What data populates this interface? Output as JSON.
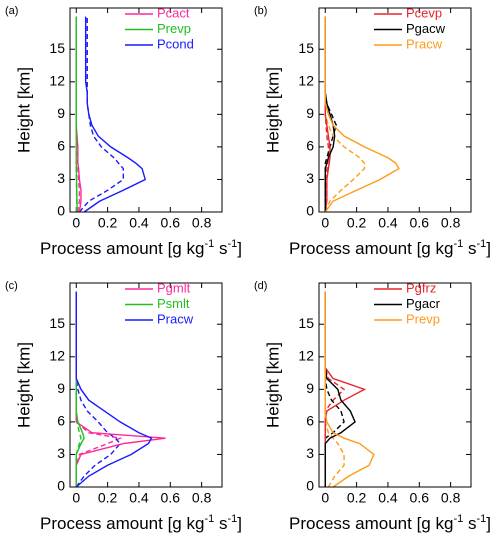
{
  "chart_data": [
    {
      "type": "line",
      "panel_label": "(a)",
      "ylabel": "Height [km]",
      "xlabel": [
        "Process amount [g kg",
        "-1",
        " s",
        "-1",
        "]"
      ],
      "y": [
        0,
        1,
        2,
        3,
        4,
        4.5,
        5,
        6,
        7,
        8,
        9,
        10,
        11,
        12,
        13,
        14,
        15,
        16,
        17,
        18
      ],
      "xlim": [
        -0.04,
        0.93
      ],
      "ylim": [
        0,
        18.8
      ],
      "xticks": [
        0,
        0.2,
        0.4,
        0.6,
        0.8
      ],
      "yticks": [
        0,
        3,
        6,
        9,
        12,
        15
      ],
      "series": [
        {
          "name": "Pcact",
          "color": "#ff2a9a",
          "values": [
            0.02,
            0.03,
            0.03,
            0.02,
            0.015,
            0.01,
            0.01,
            0.01,
            0.005,
            0,
            0,
            0,
            0,
            0,
            0,
            0,
            0,
            0,
            0,
            0
          ]
        },
        {
          "name": "Prevp",
          "color": "#22c022",
          "values": [
            0.005,
            0.005,
            0.003,
            0.002,
            0.001,
            0,
            0,
            0,
            0,
            0,
            0,
            0,
            0,
            0,
            0,
            0,
            0,
            0,
            0,
            0
          ]
        },
        {
          "name": "Pcond",
          "color": "#1a1aff",
          "values": [
            0.05,
            0.15,
            0.3,
            0.44,
            0.42,
            0.38,
            0.33,
            0.22,
            0.14,
            0.1,
            0.08,
            0.07,
            0.07,
            0.06,
            0.06,
            0.06,
            0.06,
            0.06,
            0.06,
            0.06
          ]
        }
      ],
      "dashed_series": [
        {
          "color": "#ff2a9a",
          "values": [
            0.01,
            0.02,
            0.02,
            0.015,
            0.01,
            0.01,
            0.005,
            0.005,
            0,
            0,
            0,
            0,
            0,
            0,
            0,
            0,
            0,
            0,
            0,
            0
          ]
        },
        {
          "color": "#22c022",
          "values": [
            0.003,
            0.003,
            0.002,
            0.001,
            0,
            0,
            0,
            0,
            0,
            0,
            0,
            0,
            0,
            0,
            0,
            0,
            0,
            0,
            0,
            0
          ]
        },
        {
          "color": "#1a1aff",
          "values": [
            0.02,
            0.08,
            0.2,
            0.3,
            0.3,
            0.27,
            0.24,
            0.16,
            0.11,
            0.09,
            0.08,
            0.07,
            0.07,
            0.07,
            0.07,
            0.07,
            0.07,
            0.07,
            0.07,
            0.07
          ]
        }
      ]
    },
    {
      "type": "line",
      "panel_label": "(b)",
      "ylabel": "Height [km]",
      "xlabel": [
        "Process amount [g kg",
        "-1",
        " s",
        "-1",
        "]"
      ],
      "y": [
        0,
        1,
        2,
        3,
        4,
        4.5,
        5,
        6,
        7,
        8,
        9,
        10,
        11,
        12,
        13,
        14,
        15,
        16,
        17,
        18
      ],
      "xlim": [
        -0.04,
        0.93
      ],
      "ylim": [
        0,
        18.8
      ],
      "xticks": [
        0,
        0.2,
        0.4,
        0.6,
        0.8
      ],
      "yticks": [
        0,
        3,
        6,
        9,
        12,
        15
      ],
      "series": [
        {
          "name": "Pcevp",
          "color": "#e8242b",
          "values": [
            0,
            0.01,
            0.01,
            0.01,
            0.02,
            0.025,
            0.03,
            0.03,
            0.02,
            0.01,
            0,
            0,
            0,
            0,
            0,
            0,
            0,
            0,
            0,
            0
          ]
        },
        {
          "name": "Pgacw",
          "color": "#000000",
          "values": [
            0,
            0,
            0,
            0,
            0,
            0.01,
            0.02,
            0.05,
            0.06,
            0.05,
            0.03,
            0.01,
            0,
            0,
            0,
            0,
            0,
            0,
            0,
            0
          ]
        },
        {
          "name": "Pracw",
          "color": "#ff9a1a",
          "values": [
            0,
            0.05,
            0.2,
            0.35,
            0.47,
            0.45,
            0.4,
            0.25,
            0.12,
            0.05,
            0.02,
            0,
            0,
            0,
            0,
            0,
            0,
            0,
            0,
            0
          ]
        }
      ],
      "dashed_series": [
        {
          "color": "#e8242b",
          "values": [
            0,
            0.005,
            0.005,
            0.01,
            0.01,
            0.015,
            0.02,
            0.02,
            0.01,
            0.005,
            0,
            0,
            0,
            0,
            0,
            0,
            0,
            0,
            0,
            0
          ]
        },
        {
          "color": "#000000",
          "values": [
            0,
            0,
            0,
            0,
            0,
            0,
            0.01,
            0.03,
            0.05,
            0.07,
            0.04,
            0.01,
            0,
            0,
            0,
            0,
            0,
            0,
            0,
            0
          ]
        },
        {
          "color": "#ff9a1a",
          "values": [
            0,
            0.03,
            0.1,
            0.18,
            0.25,
            0.25,
            0.22,
            0.12,
            0.05,
            0.02,
            0,
            0,
            0,
            0,
            0,
            0,
            0,
            0,
            0,
            0
          ]
        }
      ]
    },
    {
      "type": "line",
      "panel_label": "(c)",
      "ylabel": "Height [km]",
      "xlabel": [
        "Process amount [g kg",
        "-1",
        " s",
        "-1",
        "]"
      ],
      "y": [
        0,
        1,
        2,
        3,
        4,
        4.5,
        5,
        6,
        7,
        8,
        9,
        10,
        11,
        12,
        13,
        14,
        15,
        16,
        17,
        18
      ],
      "xlim": [
        -0.04,
        0.93
      ],
      "ylim": [
        0,
        18.8
      ],
      "xticks": [
        0,
        0.2,
        0.4,
        0.6,
        0.8
      ],
      "yticks": [
        0,
        3,
        6,
        9,
        12,
        15
      ],
      "series": [
        {
          "name": "Pgmlt",
          "color": "#ff2a9a",
          "values": [
            0,
            0,
            0,
            0.03,
            0.3,
            0.57,
            0.1,
            0,
            0,
            0,
            0,
            0,
            0,
            0,
            0,
            0,
            0,
            0,
            0,
            0
          ]
        },
        {
          "name": "Psmlt",
          "color": "#22c022",
          "values": [
            0,
            0,
            0,
            0,
            0.03,
            0.05,
            0.04,
            0.01,
            0,
            0,
            0,
            0,
            0,
            0,
            0,
            0,
            0,
            0,
            0,
            0
          ]
        },
        {
          "name": "Pracw",
          "color": "#1a1aff",
          "values": [
            0,
            0.08,
            0.2,
            0.35,
            0.46,
            0.48,
            0.4,
            0.28,
            0.18,
            0.08,
            0.03,
            0,
            0,
            0,
            0,
            0,
            0,
            0,
            0,
            0
          ]
        }
      ],
      "dashed_series": [
        {
          "color": "#ff2a9a",
          "values": [
            0,
            0,
            0,
            0.02,
            0.2,
            0.28,
            0.08,
            0,
            0,
            0,
            0,
            0,
            0,
            0,
            0,
            0,
            0,
            0,
            0,
            0
          ]
        },
        {
          "color": "#22c022",
          "values": [
            0,
            0,
            0,
            0,
            0.02,
            0.03,
            0.02,
            0.005,
            0,
            0,
            0,
            0,
            0,
            0,
            0,
            0,
            0,
            0,
            0,
            0
          ]
        },
        {
          "color": "#1a1aff",
          "values": [
            0,
            0.05,
            0.12,
            0.22,
            0.28,
            0.25,
            0.2,
            0.14,
            0.07,
            0.03,
            0.01,
            0,
            0,
            0,
            0,
            0,
            0,
            0,
            0,
            0
          ]
        }
      ]
    },
    {
      "type": "line",
      "panel_label": "(d)",
      "ylabel": "Height [km]",
      "xlabel": [
        "Process amount [g kg",
        "-1",
        " s",
        "-1",
        "]"
      ],
      "y": [
        0,
        1,
        2,
        3,
        4,
        4.5,
        5,
        6,
        7,
        8,
        9,
        10,
        11,
        12,
        13,
        14,
        15,
        16,
        17,
        18
      ],
      "xlim": [
        -0.04,
        0.93
      ],
      "ylim": [
        0,
        18.8
      ],
      "xticks": [
        0,
        0.2,
        0.4,
        0.6,
        0.8
      ],
      "yticks": [
        0,
        3,
        6,
        9,
        12,
        15
      ],
      "series": [
        {
          "name": "Pgfrz",
          "color": "#e8242b",
          "values": [
            0,
            0,
            0,
            0,
            0,
            0,
            0,
            0,
            0.01,
            0.12,
            0.25,
            0.05,
            0,
            0,
            0,
            0,
            0,
            0,
            0,
            0
          ]
        },
        {
          "name": "Pgacr",
          "color": "#000000",
          "values": [
            0,
            0,
            0,
            0,
            0,
            0.03,
            0.1,
            0.19,
            0.16,
            0.1,
            0.08,
            0.01,
            0,
            0,
            0,
            0,
            0,
            0,
            0,
            0
          ]
        },
        {
          "name": "Prevp",
          "color": "#ff9a1a",
          "values": [
            0.05,
            0.15,
            0.28,
            0.31,
            0.22,
            0.12,
            0.05,
            0.01,
            0,
            0,
            0,
            0,
            0,
            0,
            0,
            0,
            0,
            0,
            0,
            0
          ]
        }
      ],
      "dashed_series": [
        {
          "color": "#e8242b",
          "values": [
            0,
            0,
            0,
            0,
            0,
            0,
            0,
            0,
            0,
            0.05,
            0.12,
            0.02,
            0,
            0,
            0,
            0,
            0,
            0,
            0,
            0
          ]
        },
        {
          "color": "#000000",
          "values": [
            0,
            0,
            0,
            0,
            0,
            0,
            0.05,
            0.12,
            0.1,
            0.04,
            0.01,
            0,
            0,
            0,
            0,
            0,
            0,
            0,
            0,
            0
          ]
        },
        {
          "color": "#ff9a1a",
          "values": [
            0.02,
            0.06,
            0.12,
            0.12,
            0.08,
            0.05,
            0.02,
            0,
            0,
            0,
            0,
            0,
            0,
            0,
            0,
            0,
            0,
            0,
            0,
            0
          ]
        }
      ]
    }
  ]
}
